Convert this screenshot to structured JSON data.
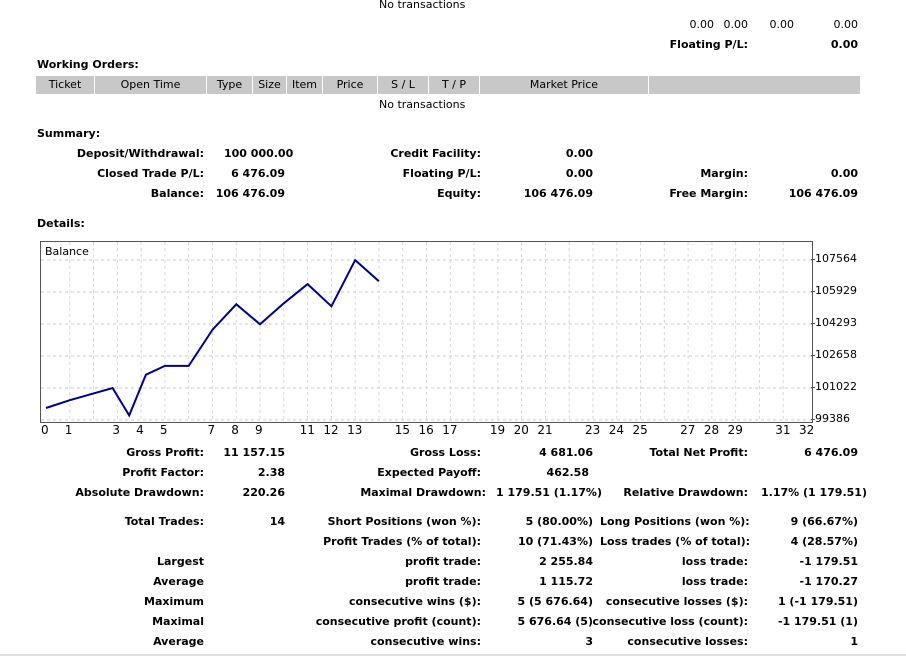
{
  "positions": {
    "no_transactions": "No transactions",
    "totals": [
      "0.00",
      "0.00",
      "0.00",
      "0.00"
    ],
    "floating_label": "Floating P/L:",
    "floating_value": "0.00"
  },
  "working_orders": {
    "title": "Working Orders:",
    "headers": [
      "Ticket",
      "Open Time",
      "Type",
      "Size",
      "Item",
      "Price",
      "S / L",
      "T / P",
      "Market Price"
    ],
    "no_transactions": "No transactions"
  },
  "summary": {
    "title": "Summary:",
    "deposit_label": "Deposit/Withdrawal:",
    "deposit_value": "100 000.00",
    "credit_label": "Credit Facility:",
    "credit_value": "0.00",
    "closed_label": "Closed Trade P/L:",
    "closed_value": "6 476.09",
    "floating_label": "Floating P/L:",
    "floating_value": "0.00",
    "margin_label": "Margin:",
    "margin_value": "0.00",
    "balance_label": "Balance:",
    "balance_value": "106 476.09",
    "equity_label": "Equity:",
    "equity_value": "106 476.09",
    "free_margin_label": "Free Margin:",
    "free_margin_value": "106 476.09"
  },
  "details": {
    "title": "Details:"
  },
  "chart_data": {
    "type": "line",
    "title": "Balance",
    "x_ticks": [
      "0",
      "1",
      "2",
      "3",
      "4",
      "5",
      "6",
      "7",
      "8",
      "9",
      "10",
      "11",
      "12",
      "13",
      "14",
      "15",
      "16",
      "17",
      "18",
      "19",
      "20",
      "21",
      "22",
      "23",
      "24",
      "25",
      "26",
      "27",
      "28",
      "29",
      "30",
      "31",
      "32"
    ],
    "x_visible_labels": [
      "0",
      "1",
      "3",
      "4",
      "5",
      "7",
      "8",
      "9",
      "11",
      "12",
      "13",
      "15",
      "16",
      "17",
      "19",
      "20",
      "21",
      "23",
      "24",
      "25",
      "27",
      "28",
      "29",
      "31",
      "32"
    ],
    "y_ticks": [
      "107564",
      "105929",
      "104293",
      "102658",
      "101022",
      "99386"
    ],
    "y_tick_values": [
      107564,
      105929,
      104293,
      102658,
      101022,
      99386
    ],
    "ylim": [
      99386,
      107564
    ],
    "xlim": [
      0,
      32
    ],
    "grid": true,
    "series": [
      {
        "color": "#00008b",
        "x": [
          0,
          1,
          2.8,
          3.5,
          4.2,
          5,
          6,
          7,
          8,
          9,
          10,
          11,
          12,
          13,
          14
        ],
        "y": [
          100000,
          100400,
          101022,
          99620,
          101700,
          102150,
          102150,
          104000,
          105300,
          104280,
          105350,
          106330,
          105200,
          107560,
          106476
        ]
      }
    ]
  },
  "stats": {
    "gross_profit_label": "Gross Profit:",
    "gross_profit_value": "11 157.15",
    "gross_loss_label": "Gross Loss:",
    "gross_loss_value": "4 681.06",
    "net_profit_label": "Total Net Profit:",
    "net_profit_value": "6 476.09",
    "profit_factor_label": "Profit Factor:",
    "profit_factor_value": "2.38",
    "expected_payoff_label": "Expected Payoff:",
    "expected_payoff_value": "462.58",
    "abs_dd_label": "Absolute Drawdown:",
    "abs_dd_value": "220.26",
    "max_dd_label": "Maximal Drawdown:",
    "max_dd_value": "1 179.51 (1.17%)",
    "rel_dd_label": "Relative Drawdown:",
    "rel_dd_value": "1.17% (1 179.51)",
    "total_trades_label": "Total Trades:",
    "total_trades_value": "14",
    "short_label": "Short Positions (won %):",
    "short_value": "5 (80.00%)",
    "long_label": "Long Positions (won %):",
    "long_value": "9 (66.67%)",
    "profit_trades_label": "Profit Trades (% of total):",
    "profit_trades_value": "10 (71.43%)",
    "loss_trades_label": "Loss trades (% of total):",
    "loss_trades_value": "4 (28.57%)",
    "largest_label": "Largest",
    "largest_profit_label": "profit trade:",
    "largest_profit_value": "2 255.84",
    "largest_loss_label": "loss trade:",
    "largest_loss_value": "-1 179.51",
    "average_label": "Average",
    "avg_profit_label": "profit trade:",
    "avg_profit_value": "1 115.72",
    "avg_loss_label": "loss trade:",
    "avg_loss_value": "-1 170.27",
    "maximum_label": "Maximum",
    "max_wins_label": "consecutive wins ($):",
    "max_wins_value": "5 (5 676.64)",
    "max_losses_label": "consecutive losses ($):",
    "max_losses_value": "1 (-1 179.51)",
    "maximal_label": "Maximal",
    "maximal_profit_label": "consecutive profit (count):",
    "maximal_profit_value": "5 676.64 (5)",
    "maximal_loss_label": "consecutive loss (count):",
    "maximal_loss_value": "-1 179.51 (1)",
    "average2_label": "Average",
    "avg_wins_label": "consecutive wins:",
    "avg_wins_value": "3",
    "avg_losses_label": "consecutive losses:",
    "avg_losses_value": "1"
  }
}
